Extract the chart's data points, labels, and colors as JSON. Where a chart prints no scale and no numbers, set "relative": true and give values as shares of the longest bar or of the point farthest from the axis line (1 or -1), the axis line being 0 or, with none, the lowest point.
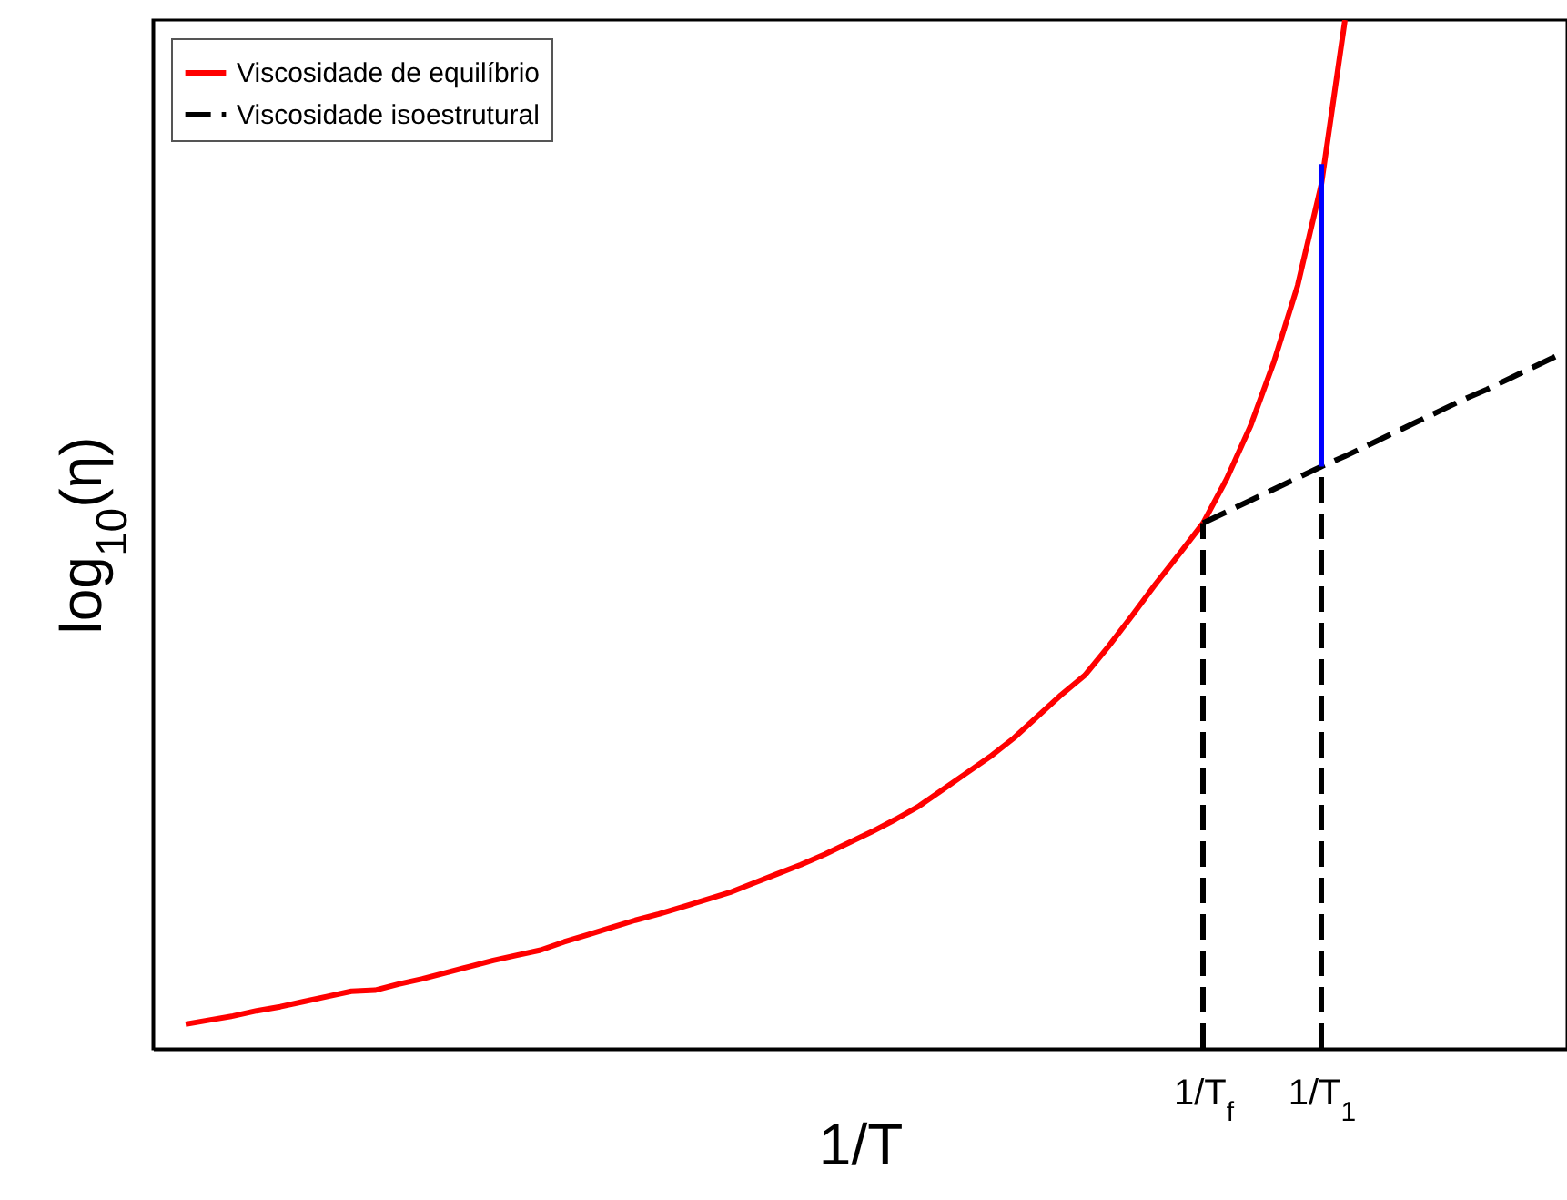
{
  "chart_data": {
    "type": "line",
    "relative": true,
    "xlabel": "1/T",
    "ylabel": "log$_{10}$(η)",
    "categories": [
      null,
      null,
      null,
      null,
      null,
      null,
      null,
      null,
      null,
      null,
      null,
      null,
      null,
      null,
      null,
      null,
      null,
      null,
      null,
      null,
      null,
      null,
      null,
      null,
      null,
      null,
      null,
      null,
      null,
      null,
      null,
      null,
      null,
      null,
      null,
      null,
      null,
      null,
      null,
      null,
      null,
      null,
      null,
      null,
      "1/T$_{f}$",
      null,
      null,
      null,
      null,
      "1/T$_{1}$",
      null,
      null,
      null,
      null,
      null,
      null,
      null,
      null,
      null,
      null
    ],
    "legend": "top left",
    "grid": false,
    "series": [
      {
        "name": "Viscosidade de equilíbrio",
        "color": "#ff0000",
        "line_style": "solid",
        "values": [
          null,
          0.024,
          0.028,
          0.032,
          0.037,
          0.041,
          0.046,
          0.051,
          0.056,
          0.057,
          0.063,
          0.068,
          0.074,
          0.08,
          0.086,
          0.091,
          0.096,
          0.104,
          0.111,
          0.118,
          0.125,
          0.131,
          0.138,
          0.145,
          0.152,
          0.161,
          0.17,
          0.179,
          0.189,
          0.2,
          0.211,
          0.223,
          0.236,
          0.252,
          0.268,
          0.284,
          0.302,
          0.323,
          0.344,
          0.363,
          0.391,
          0.421,
          0.452,
          0.481,
          0.511,
          0.554,
          0.605,
          0.668,
          0.742,
          0.84,
          1.0,
          null,
          null,
          null,
          null,
          null,
          null,
          null,
          null,
          null
        ]
      },
      {
        "name": "Viscosidade isoestrutural",
        "color": "#000000",
        "line_style": "dashed",
        "values": [
          null,
          null,
          null,
          null,
          null,
          null,
          null,
          null,
          null,
          null,
          null,
          null,
          null,
          null,
          null,
          null,
          null,
          null,
          null,
          null,
          null,
          null,
          null,
          null,
          null,
          null,
          null,
          null,
          null,
          null,
          null,
          null,
          null,
          null,
          null,
          null,
          null,
          null,
          null,
          null,
          null,
          null,
          null,
          null,
          0.511,
          0.522,
          0.533,
          0.544,
          0.555,
          0.566,
          0.576,
          0.587,
          0.598,
          0.609,
          0.62,
          0.631,
          0.641,
          0.652,
          0.663,
          0.674
        ]
      },
      {
        "color": "#000000",
        "line_style": "dashed",
        "x": [
          "1/T$_{f}$",
          "1/T$_{f}$"
        ],
        "values": [
          0,
          0.511
        ]
      },
      {
        "color": "#000000",
        "line_style": "dashed",
        "x": [
          "1/T$_{1}$",
          "1/T$_{1}$"
        ],
        "values": [
          0,
          0.566
        ]
      },
      {
        "color": "#0000ff",
        "line_style": "solid",
        "x": [
          "1/T$_{1}$",
          "1/T$_{1}$"
        ],
        "values": [
          0.566,
          0.86
        ]
      }
    ]
  }
}
